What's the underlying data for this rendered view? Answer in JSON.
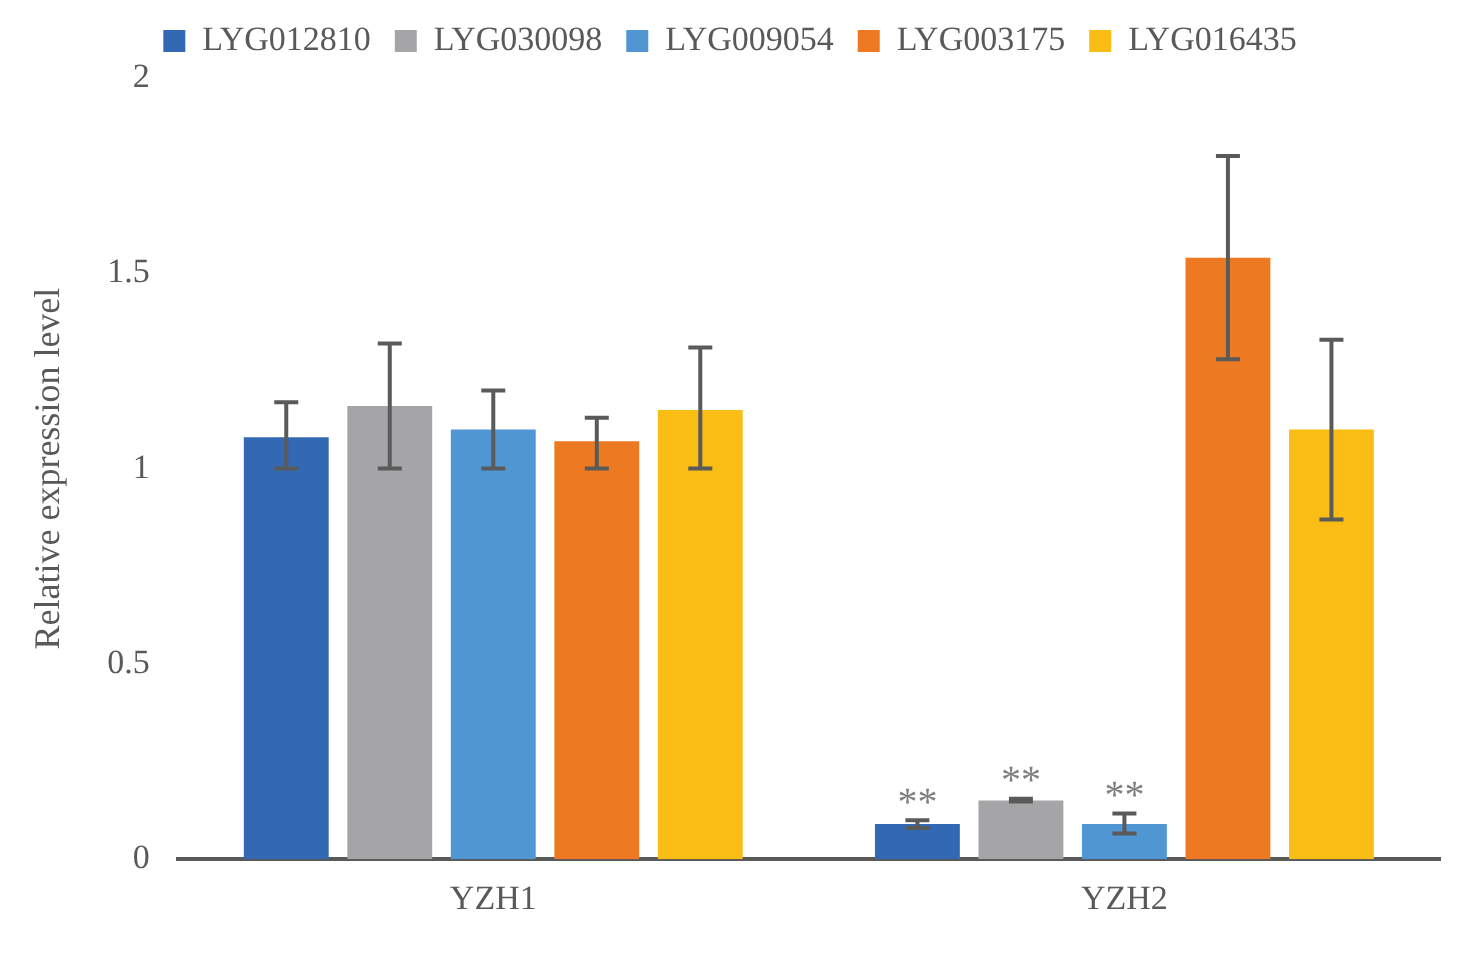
{
  "chart_data": {
    "type": "bar",
    "ylabel": "Relative expression level",
    "categories": [
      "YZH1",
      "YZH2"
    ],
    "series": [
      {
        "name": "LYG012810",
        "color": "#3369b3",
        "values": [
          1.08,
          0.09
        ],
        "errors": [
          [
            1.0,
            1.17
          ],
          [
            0.08,
            0.1
          ]
        ],
        "value_labels": [
          null,
          "**"
        ]
      },
      {
        "name": "LYG030098",
        "color": "#a5a5a8",
        "values": [
          1.16,
          0.15
        ],
        "errors": [
          [
            1.0,
            1.32
          ],
          [
            0.148,
            0.155
          ]
        ],
        "value_labels": [
          null,
          "**"
        ]
      },
      {
        "name": "LYG009054",
        "color": "#5096d2",
        "values": [
          1.1,
          0.09
        ],
        "errors": [
          [
            1.0,
            1.2
          ],
          [
            0.066,
            0.117
          ]
        ],
        "value_labels": [
          null,
          "**"
        ]
      },
      {
        "name": "LYG003175",
        "color": "#ed7a22",
        "values": [
          1.07,
          1.54
        ],
        "errors": [
          [
            1.0,
            1.13
          ],
          [
            1.28,
            1.8
          ]
        ]
      },
      {
        "name": "LYG016435",
        "color": "#fabd14",
        "values": [
          1.15,
          1.1
        ],
        "errors": [
          [
            1.0,
            1.31
          ],
          [
            0.87,
            1.33
          ]
        ]
      }
    ],
    "ylim": [
      0,
      2
    ],
    "yticks": [
      0,
      0.5,
      1,
      1.5,
      2
    ],
    "grid": false,
    "legend": "top"
  }
}
